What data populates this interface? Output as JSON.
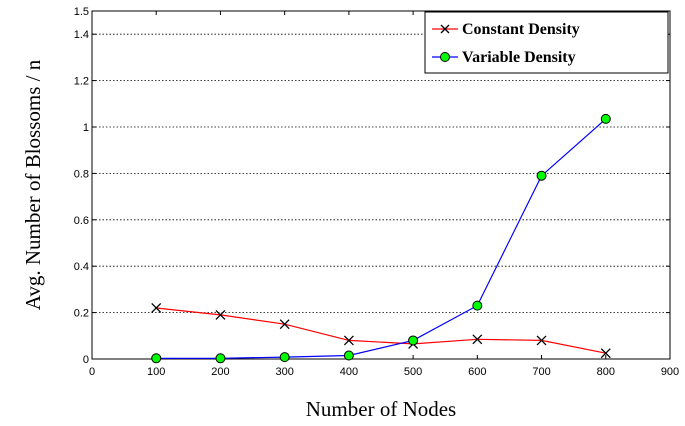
{
  "chart_data": {
    "type": "line",
    "xlabel": "Number of Nodes",
    "ylabel": "Avg. Number of Blossoms / n",
    "xlim": [
      0,
      900
    ],
    "ylim": [
      0,
      1.5
    ],
    "x_ticks": [
      0,
      100,
      200,
      300,
      400,
      500,
      600,
      700,
      800,
      900
    ],
    "y_ticks": [
      0,
      0.2,
      0.4,
      0.6,
      0.8,
      1,
      1.2,
      1.4,
      1.5
    ],
    "y_tick_labels": [
      "0",
      "0.2",
      "0.4",
      "0.6",
      "0.8",
      "1",
      "1.2",
      "1.4",
      "1.5"
    ],
    "grid": "horizontal dotted",
    "legend_position": "top-right",
    "series": [
      {
        "name": "Constant Density",
        "color": "#ff0000",
        "marker": "x",
        "marker_color": "#000000",
        "x": [
          100,
          200,
          300,
          400,
          500,
          600,
          700,
          800
        ],
        "y": [
          0.22,
          0.19,
          0.15,
          0.08,
          0.065,
          0.085,
          0.08,
          0.025
        ]
      },
      {
        "name": "Variable Density",
        "color": "#0000ff",
        "marker": "circle",
        "marker_color": "#00ff00",
        "x": [
          100,
          200,
          300,
          400,
          500,
          600,
          700,
          800
        ],
        "y": [
          0.003,
          0.003,
          0.008,
          0.015,
          0.08,
          0.23,
          0.79,
          1.035
        ]
      }
    ]
  }
}
